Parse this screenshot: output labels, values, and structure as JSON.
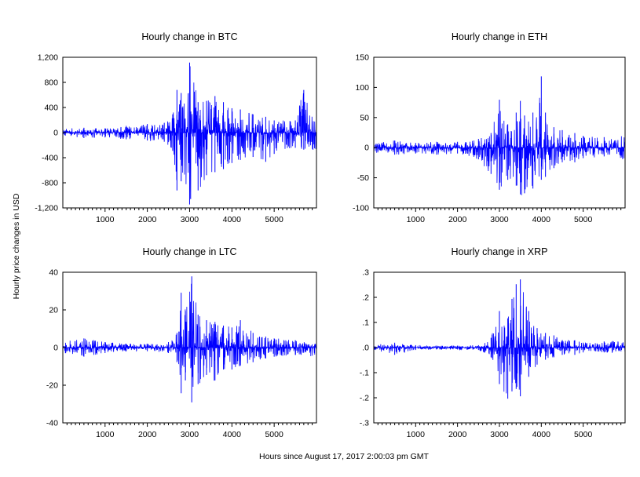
{
  "figure": {
    "ylabel": "Hourly price changes in USD",
    "xlabel": "Hours since August 17, 2017 2:00:03 pm GMT",
    "series_color": "#0000ff"
  },
  "chart_data": [
    {
      "type": "line",
      "title": "Hourly change in BTC",
      "xlim": [
        1,
        6000
      ],
      "ylim": [
        -1200,
        1200
      ],
      "xticks": [
        1000,
        2000,
        3000,
        4000,
        5000
      ],
      "xtick_labels": [
        "1000",
        "2000",
        "3000",
        "4000",
        "5000"
      ],
      "yticks": [
        -1200,
        -800,
        -400,
        0,
        400,
        800,
        1200
      ],
      "ytick_labels": [
        "-1,200",
        "-800",
        "-400",
        "0",
        "400",
        "800",
        "1,200"
      ],
      "envelope": {
        "x": [
          1,
          500,
          1000,
          1500,
          2000,
          2400,
          2600,
          2700,
          2800,
          3000,
          3200,
          3400,
          3600,
          3800,
          4000,
          4200,
          4500,
          4800,
          5000,
          5500,
          5700,
          6000
        ],
        "upper": [
          60,
          80,
          70,
          110,
          140,
          160,
          300,
          700,
          650,
          1150,
          500,
          520,
          600,
          500,
          400,
          380,
          300,
          260,
          200,
          200,
          700,
          220
        ],
        "lower": [
          -60,
          -90,
          -80,
          -110,
          -130,
          -150,
          -300,
          -950,
          -800,
          -1180,
          -950,
          -700,
          -650,
          -600,
          -500,
          -450,
          -400,
          -480,
          -350,
          -250,
          -280,
          -300
        ]
      },
      "grid": false,
      "legend": "none"
    },
    {
      "type": "line",
      "title": "Hourly change in ETH",
      "xlim": [
        1,
        6000
      ],
      "ylim": [
        -100,
        150
      ],
      "xticks": [
        1000,
        2000,
        3000,
        4000,
        5000
      ],
      "xtick_labels": [
        "1000",
        "2000",
        "3000",
        "4000",
        "5000"
      ],
      "yticks": [
        -100,
        -50,
        0,
        50,
        100,
        150
      ],
      "ytick_labels": [
        "-100",
        "-50",
        "0",
        "50",
        "100",
        "150"
      ],
      "envelope": {
        "x": [
          1,
          500,
          1000,
          1500,
          2000,
          2500,
          2800,
          3000,
          3200,
          3400,
          3500,
          3600,
          3800,
          4000,
          4100,
          4300,
          4500,
          4800,
          5000,
          5500,
          6000
        ],
        "upper": [
          8,
          12,
          8,
          10,
          10,
          15,
          25,
          82,
          40,
          60,
          80,
          55,
          60,
          122,
          60,
          35,
          30,
          25,
          20,
          18,
          20
        ],
        "lower": [
          -8,
          -12,
          -10,
          -12,
          -10,
          -20,
          -45,
          -72,
          -55,
          -65,
          -80,
          -78,
          -70,
          -55,
          -50,
          -35,
          -25,
          -25,
          -18,
          -15,
          -20
        ]
      },
      "grid": false,
      "legend": "none"
    },
    {
      "type": "line",
      "title": "Hourly change in LTC",
      "xlim": [
        1,
        6000
      ],
      "ylim": [
        -40,
        40
      ],
      "xticks": [
        1000,
        2000,
        3000,
        4000,
        5000
      ],
      "xtick_labels": [
        "1000",
        "2000",
        "3000",
        "4000",
        "5000"
      ],
      "yticks": [
        -40,
        -20,
        0,
        20,
        40
      ],
      "ytick_labels": [
        "-40",
        "-20",
        "0",
        "20",
        "40"
      ],
      "envelope": {
        "x": [
          1,
          500,
          1000,
          1500,
          2000,
          2500,
          2700,
          2800,
          2900,
          3050,
          3200,
          3400,
          3600,
          3800,
          4000,
          4200,
          4500,
          4800,
          5000,
          5500,
          6000
        ],
        "upper": [
          3,
          5,
          3,
          2,
          2,
          3,
          8,
          30,
          20,
          39,
          18,
          15,
          14,
          12,
          11,
          15,
          8,
          6,
          5,
          4,
          5
        ],
        "lower": [
          -3,
          -5,
          -3,
          -2,
          -2,
          -3,
          -8,
          -25,
          -18,
          -30,
          -20,
          -15,
          -18,
          -12,
          -12,
          -10,
          -8,
          -6,
          -5,
          -4,
          -5
        ]
      },
      "grid": false,
      "legend": "none"
    },
    {
      "type": "line",
      "title": "Hourly change in XRP",
      "xlim": [
        1,
        6000
      ],
      "ylim": [
        -0.3,
        0.3
      ],
      "xticks": [
        1000,
        2000,
        3000,
        4000,
        5000
      ],
      "xtick_labels": [
        "1000",
        "2000",
        "3000",
        "4000",
        "5000"
      ],
      "yticks": [
        -0.3,
        -0.2,
        -0.1,
        0,
        0.1,
        0.2,
        0.3
      ],
      "ytick_labels": [
        "-.3",
        "-.2",
        "-.1",
        ".0",
        ".1",
        ".2",
        ".3"
      ],
      "envelope": {
        "x": [
          1,
          500,
          1000,
          1500,
          2000,
          2500,
          2800,
          3000,
          3200,
          3300,
          3400,
          3500,
          3700,
          3900,
          4100,
          4300,
          4500,
          4800,
          5000,
          5500,
          6000
        ],
        "upper": [
          0.01,
          0.02,
          0.01,
          0.008,
          0.008,
          0.01,
          0.04,
          0.15,
          0.12,
          0.2,
          0.26,
          0.28,
          0.15,
          0.08,
          0.06,
          0.05,
          0.03,
          0.03,
          0.02,
          0.025,
          0.03
        ],
        "lower": [
          -0.01,
          -0.03,
          -0.01,
          -0.008,
          -0.008,
          -0.01,
          -0.04,
          -0.15,
          -0.21,
          -0.18,
          -0.17,
          -0.2,
          -0.12,
          -0.07,
          -0.05,
          -0.04,
          -0.03,
          -0.03,
          -0.02,
          -0.02,
          -0.03
        ]
      },
      "grid": false,
      "legend": "none"
    }
  ]
}
